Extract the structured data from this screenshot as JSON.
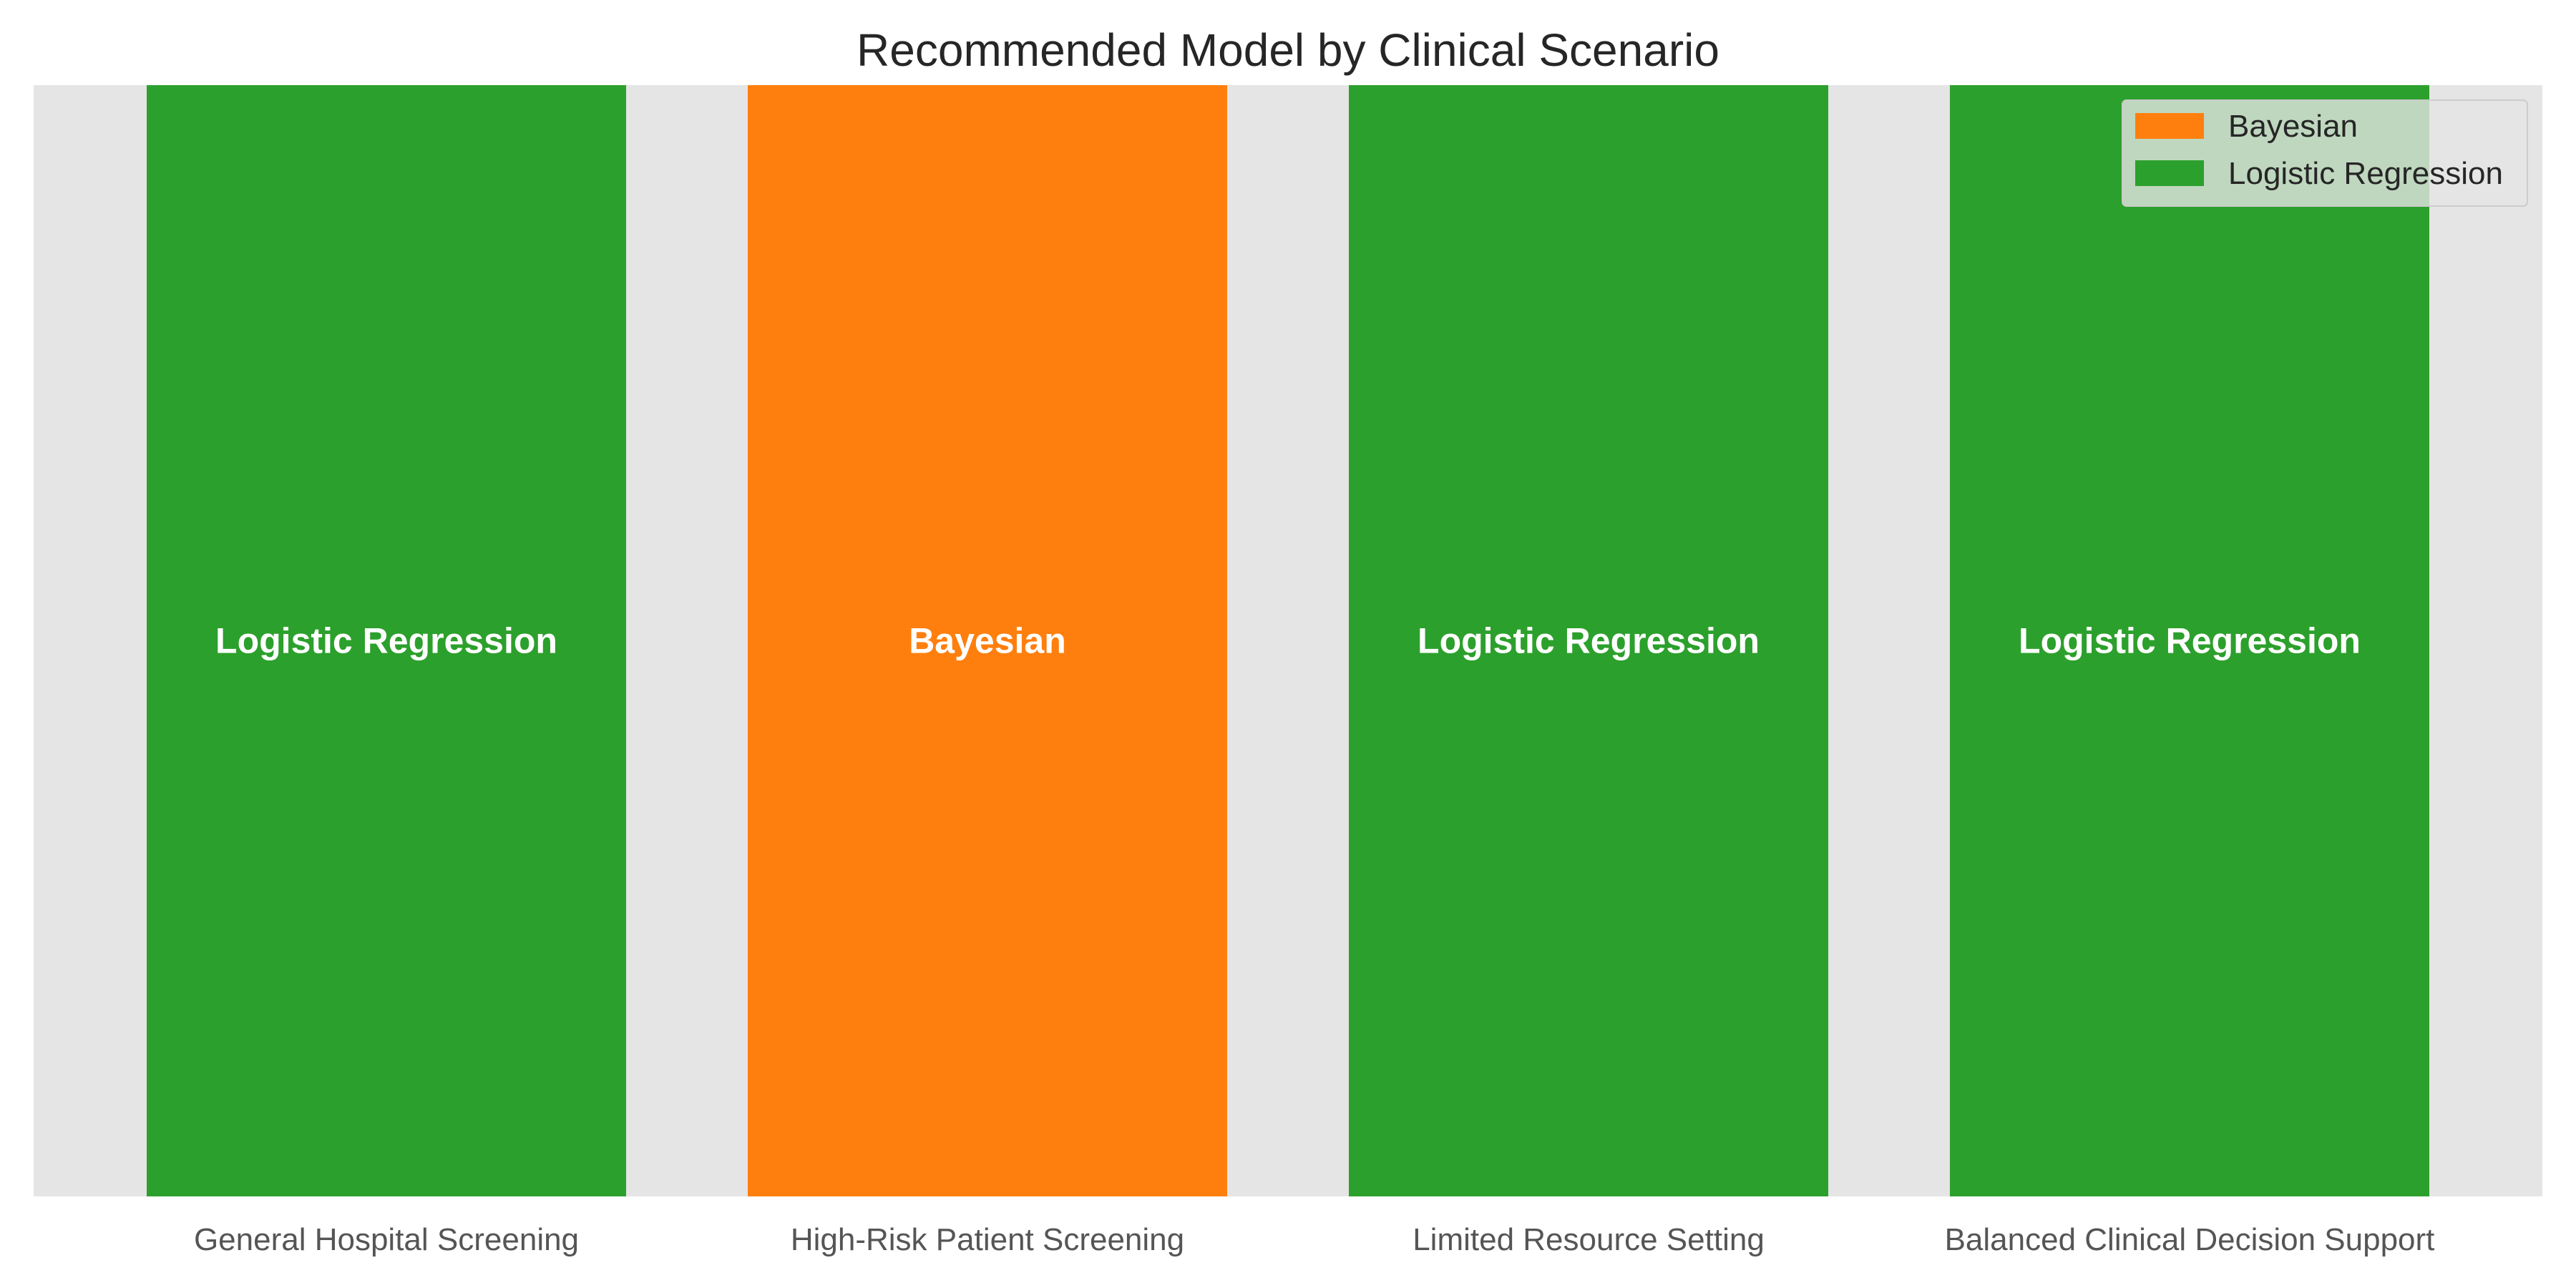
{
  "chart_data": {
    "type": "bar",
    "title": "Recommended Model by Clinical Scenario",
    "xlabel": "",
    "ylabel": "",
    "ylim": [
      0,
      1
    ],
    "grid": false,
    "legend_position": "top-right",
    "categories": [
      "General Hospital Screening",
      "High-Risk Patient Screening",
      "Limited Resource Setting",
      "Balanced Clinical Decision Support"
    ],
    "values": [
      1,
      1,
      1,
      1
    ],
    "bar_labels": [
      "Logistic Regression",
      "Bayesian",
      "Logistic Regression",
      "Logistic Regression"
    ],
    "bar_series": [
      "Logistic Regression",
      "Bayesian",
      "Logistic Regression",
      "Logistic Regression"
    ],
    "legend": [
      {
        "name": "Bayesian",
        "color": "#ff7f0e"
      },
      {
        "name": "Logistic Regression",
        "color": "#2ca02c"
      }
    ],
    "colors": {
      "plot_background": "#e5e5e5",
      "Bayesian": "#ff7f0e",
      "Logistic Regression": "#2ca02c"
    }
  }
}
